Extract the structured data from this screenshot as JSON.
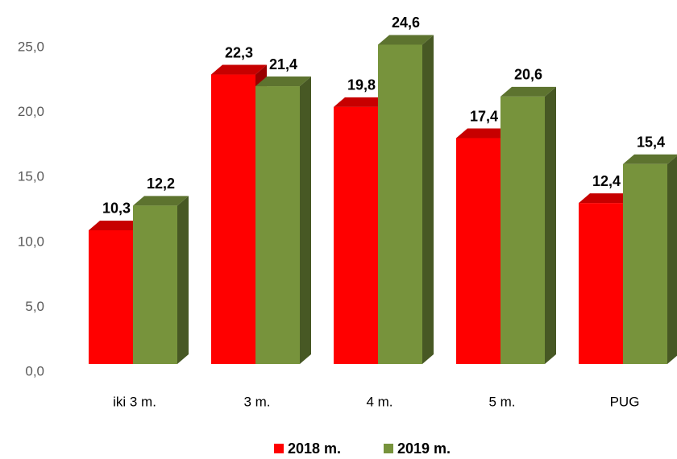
{
  "chart_data": {
    "type": "bar",
    "categories": [
      "iki 3 m.",
      "3 m.",
      "4 m.",
      "5 m.",
      "PUG"
    ],
    "series": [
      {
        "name": "2018 m.",
        "color": "#ff0000",
        "values": [
          10.3,
          22.3,
          19.8,
          17.4,
          12.4
        ],
        "value_labels": [
          "10,3",
          "22,3",
          "19,8",
          "17,4",
          "12,4"
        ]
      },
      {
        "name": "2019 m.",
        "color": "#77933c",
        "values": [
          12.2,
          21.4,
          24.6,
          20.6,
          15.4
        ],
        "value_labels": [
          "12,2",
          "21,4",
          "24,6",
          "20,6",
          "15,4"
        ]
      }
    ],
    "ylim": [
      0,
      25
    ],
    "yticks": [
      {
        "value": 0,
        "label": "0,0"
      },
      {
        "value": 5,
        "label": "5,0"
      },
      {
        "value": 10,
        "label": "10,0"
      },
      {
        "value": 15,
        "label": "15,0"
      },
      {
        "value": 20,
        "label": "20,0"
      },
      {
        "value": 25,
        "label": "25,0"
      }
    ],
    "legend": "bottom"
  }
}
